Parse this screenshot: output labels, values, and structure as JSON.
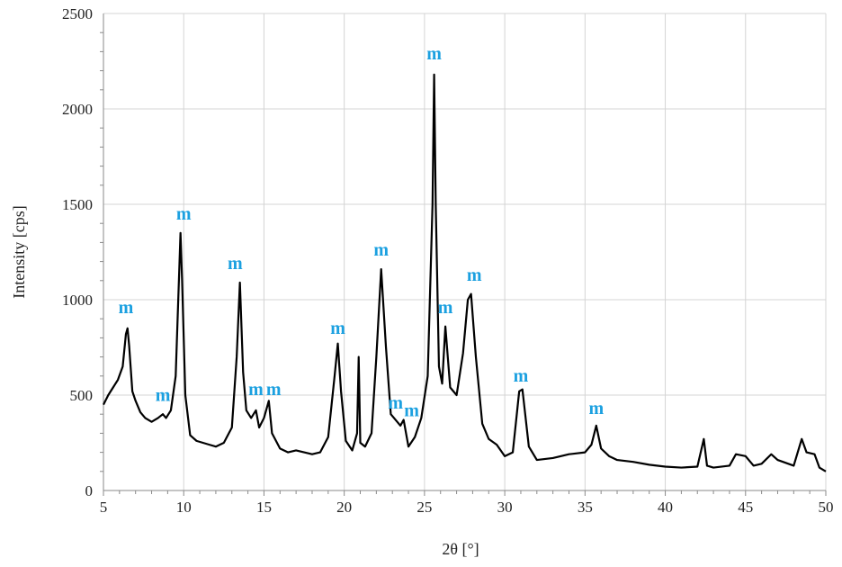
{
  "chart_data": {
    "type": "line",
    "title": "",
    "xlabel": "2θ [°]",
    "ylabel": "Intensity [cps]",
    "xlim": [
      5,
      50
    ],
    "ylim": [
      0,
      2500
    ],
    "grid": true,
    "x_ticks": [
      "5",
      "10",
      "15",
      "20",
      "25",
      "30",
      "35",
      "40",
      "45",
      "50"
    ],
    "y_ticks": [
      "0",
      "500",
      "1000",
      "1500",
      "2000",
      "2500"
    ],
    "colors": {
      "line": "#000000",
      "peak_label": "#1ba0e0",
      "grid": "#d4d4d4"
    },
    "series": [
      {
        "x": [
          5.0,
          5.3,
          5.6,
          5.9,
          6.2,
          6.4,
          6.5,
          6.6,
          6.8,
          7.0,
          7.3,
          7.6,
          8.0,
          8.4,
          8.7,
          8.9,
          9.2,
          9.5,
          9.7,
          9.8,
          9.9,
          10.1,
          10.4,
          10.8,
          11.2,
          11.6,
          12.0,
          12.5,
          13.0,
          13.3,
          13.5,
          13.7,
          13.9,
          14.2,
          14.5,
          14.7,
          15.0,
          15.3,
          15.5,
          16.0,
          16.5,
          17.0,
          17.5,
          18.0,
          18.5,
          19.0,
          19.4,
          19.6,
          19.8,
          20.1,
          20.5,
          20.8,
          20.9,
          21.0,
          21.3,
          21.7,
          22.0,
          22.3,
          22.6,
          22.9,
          23.2,
          23.5,
          23.7,
          24.0,
          24.4,
          24.8,
          25.2,
          25.5,
          25.6,
          25.7,
          25.9,
          26.1,
          26.3,
          26.6,
          27.0,
          27.4,
          27.7,
          27.9,
          28.2,
          28.6,
          29.0,
          29.5,
          30.0,
          30.5,
          30.9,
          31.1,
          31.5,
          32.0,
          33.0,
          34.0,
          35.0,
          35.4,
          35.7,
          36.0,
          36.5,
          37.0,
          38.0,
          39.0,
          40.0,
          41.0,
          42.0,
          42.4,
          42.6,
          43.0,
          44.0,
          44.4,
          45.0,
          45.5,
          46.0,
          46.6,
          47.0,
          48.0,
          48.5,
          48.8,
          49.3,
          49.6,
          50.0
        ],
        "y": [
          450,
          500,
          540,
          580,
          650,
          820,
          850,
          760,
          520,
          470,
          410,
          380,
          360,
          380,
          400,
          380,
          420,
          600,
          1100,
          1350,
          1100,
          500,
          290,
          260,
          250,
          240,
          230,
          250,
          330,
          700,
          1090,
          620,
          420,
          380,
          420,
          330,
          380,
          470,
          300,
          220,
          200,
          210,
          200,
          190,
          200,
          280,
          600,
          770,
          520,
          260,
          210,
          300,
          700,
          250,
          230,
          300,
          700,
          1160,
          750,
          400,
          370,
          340,
          370,
          230,
          280,
          380,
          600,
          1500,
          2180,
          1500,
          650,
          560,
          860,
          540,
          500,
          720,
          1000,
          1030,
          700,
          350,
          270,
          240,
          180,
          200,
          520,
          530,
          230,
          160,
          170,
          190,
          200,
          240,
          340,
          220,
          180,
          160,
          150,
          135,
          125,
          120,
          125,
          270,
          130,
          120,
          130,
          190,
          180,
          130,
          140,
          190,
          160,
          130,
          270,
          200,
          190,
          120,
          100
        ]
      }
    ],
    "annotations": [
      {
        "text": "m",
        "x": 6.4,
        "y": 930
      },
      {
        "text": "m",
        "x": 8.7,
        "y": 470
      },
      {
        "text": "m",
        "x": 10.0,
        "y": 1420
      },
      {
        "text": "m",
        "x": 13.2,
        "y": 1160
      },
      {
        "text": "m",
        "x": 14.5,
        "y": 500
      },
      {
        "text": "m",
        "x": 15.6,
        "y": 500
      },
      {
        "text": "m",
        "x": 19.6,
        "y": 820
      },
      {
        "text": "m",
        "x": 22.3,
        "y": 1230
      },
      {
        "text": "m",
        "x": 23.2,
        "y": 430
      },
      {
        "text": "m",
        "x": 24.2,
        "y": 390
      },
      {
        "text": "m",
        "x": 25.6,
        "y": 2260
      },
      {
        "text": "m",
        "x": 26.3,
        "y": 930
      },
      {
        "text": "m",
        "x": 28.1,
        "y": 1100
      },
      {
        "text": "m",
        "x": 31.0,
        "y": 570
      },
      {
        "text": "m",
        "x": 35.7,
        "y": 400
      }
    ]
  }
}
